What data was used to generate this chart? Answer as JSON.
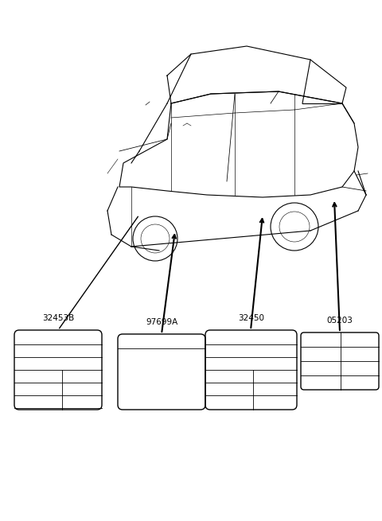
{
  "bg_color": "#ffffff",
  "line_color": "#000000",
  "car_line_color": "#333333",
  "labels": {
    "label1": "32453B",
    "label2": "97699A",
    "label3": "32450",
    "label4": "05203"
  },
  "label_fontsize": 7.5,
  "fig_width": 4.8,
  "fig_height": 6.55,
  "dpi": 100
}
